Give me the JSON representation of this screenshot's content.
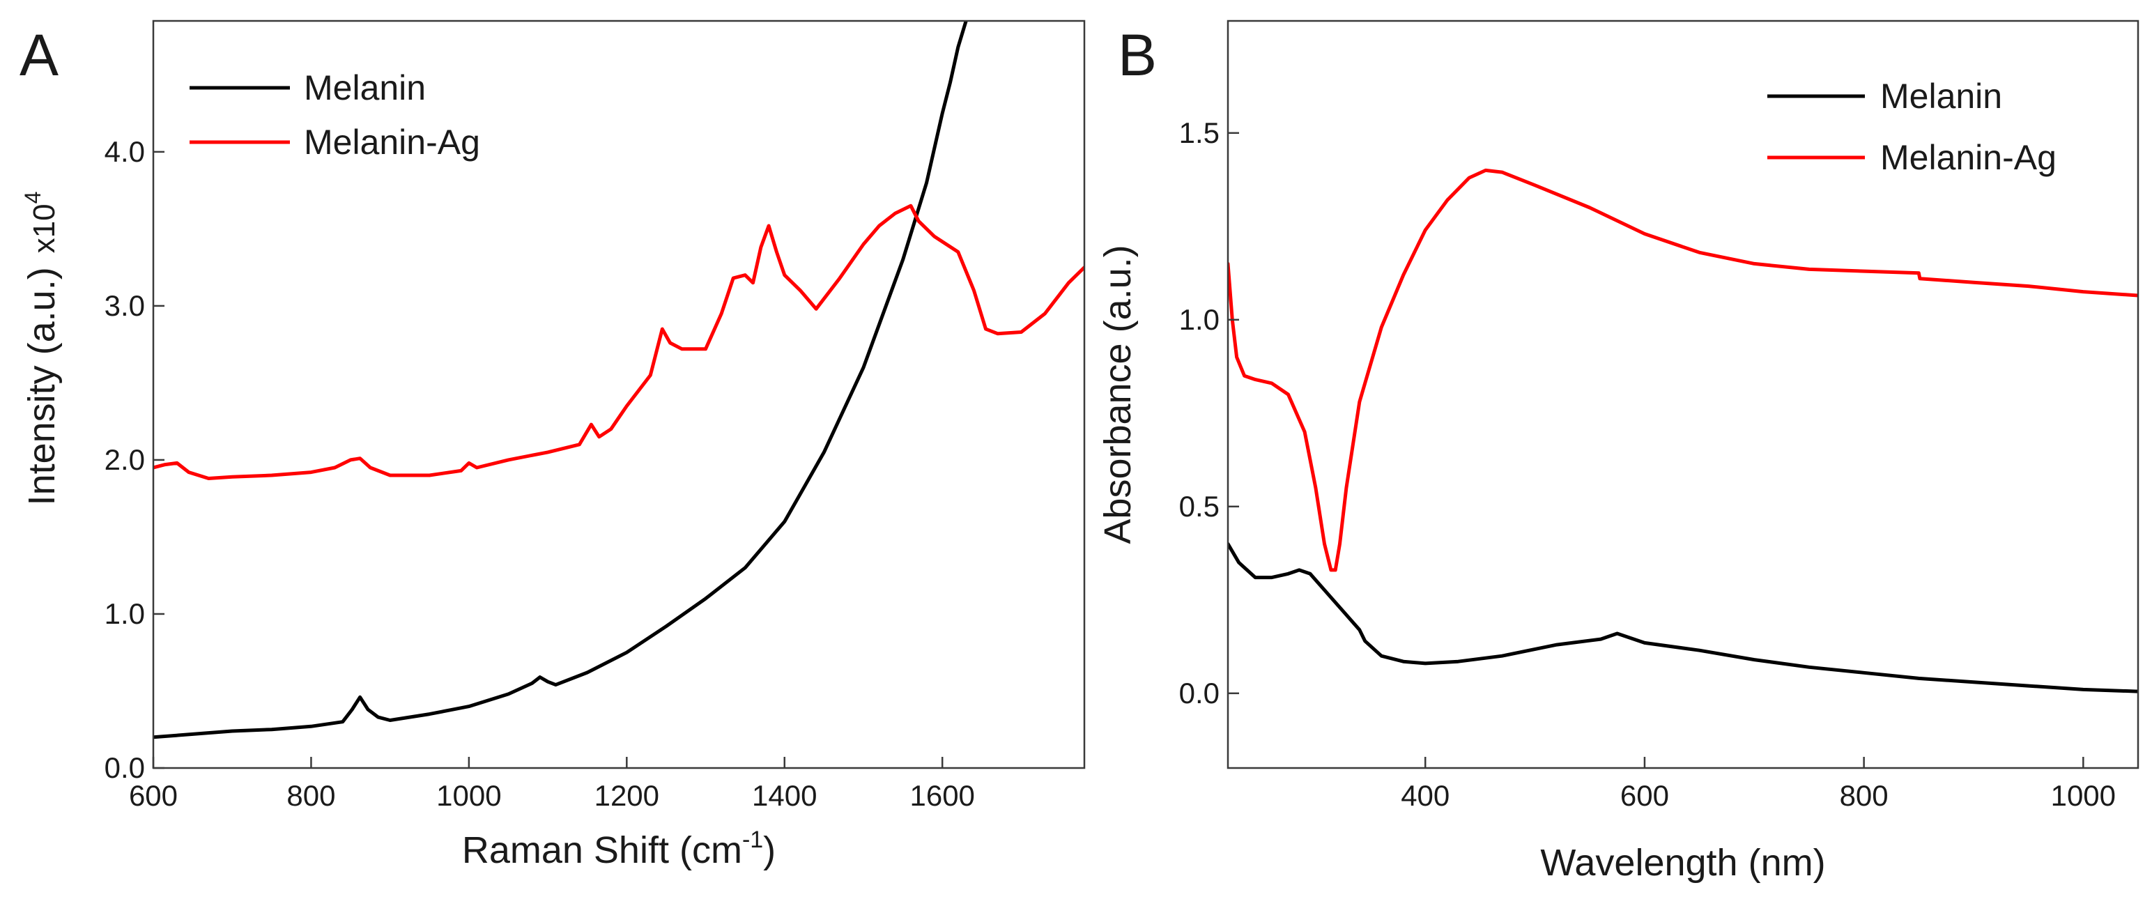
{
  "chart_data": [
    {
      "panel": "A",
      "type": "line",
      "xlabel": "Raman Shift (cm",
      "xlabel_sup": "-1",
      "xlabel_tail": ")",
      "ylabel": "Intensity (a.u.)",
      "y_multiplier": "x10",
      "y_multiplier_sup": "4",
      "xlim": [
        600,
        1780
      ],
      "ylim": [
        0.0,
        4.85
      ],
      "xticks": [
        600,
        800,
        1000,
        1200,
        1400,
        1600
      ],
      "xtick_labels": [
        "600",
        "800",
        "1000",
        "1200",
        "1400",
        "1600"
      ],
      "yticks": [
        0.0,
        1.0,
        2.0,
        3.0,
        4.0
      ],
      "ytick_labels": [
        "0.0",
        "1.0",
        "2.0",
        "3.0",
        "4.0"
      ],
      "legend_position": "top-left",
      "series": [
        {
          "name": "Melanin",
          "color": "#000000",
          "x": [
            600,
            650,
            700,
            750,
            800,
            840,
            852,
            862,
            872,
            885,
            900,
            950,
            1000,
            1050,
            1080,
            1090,
            1100,
            1110,
            1150,
            1200,
            1250,
            1300,
            1350,
            1400,
            1450,
            1500,
            1550,
            1580,
            1600,
            1610,
            1620,
            1630
          ],
          "values": [
            0.2,
            0.22,
            0.24,
            0.25,
            0.27,
            0.3,
            0.38,
            0.46,
            0.38,
            0.33,
            0.31,
            0.35,
            0.4,
            0.48,
            0.55,
            0.59,
            0.56,
            0.54,
            0.62,
            0.75,
            0.92,
            1.1,
            1.3,
            1.6,
            2.05,
            2.6,
            3.3,
            3.8,
            4.25,
            4.45,
            4.68,
            4.85
          ]
        },
        {
          "name": "Melanin-Ag",
          "color": "#ff0000",
          "x": [
            600,
            615,
            630,
            645,
            670,
            700,
            750,
            800,
            830,
            850,
            862,
            875,
            900,
            950,
            990,
            1000,
            1010,
            1050,
            1100,
            1140,
            1155,
            1165,
            1180,
            1200,
            1230,
            1245,
            1255,
            1270,
            1300,
            1320,
            1335,
            1350,
            1360,
            1370,
            1380,
            1390,
            1400,
            1420,
            1440,
            1470,
            1500,
            1520,
            1540,
            1560,
            1570,
            1590,
            1620,
            1640,
            1655,
            1670,
            1700,
            1730,
            1760,
            1780
          ],
          "values": [
            1.95,
            1.97,
            1.98,
            1.92,
            1.88,
            1.89,
            1.9,
            1.92,
            1.95,
            2.0,
            2.01,
            1.95,
            1.9,
            1.9,
            1.93,
            1.98,
            1.95,
            2.0,
            2.05,
            2.1,
            2.23,
            2.15,
            2.2,
            2.35,
            2.55,
            2.85,
            2.76,
            2.72,
            2.72,
            2.95,
            3.18,
            3.2,
            3.15,
            3.38,
            3.52,
            3.35,
            3.2,
            3.1,
            2.98,
            3.18,
            3.4,
            3.52,
            3.6,
            3.65,
            3.55,
            3.45,
            3.35,
            3.1,
            2.85,
            2.82,
            2.83,
            2.95,
            3.15,
            3.25
          ]
        }
      ]
    },
    {
      "panel": "B",
      "type": "line",
      "xlabel": "Wavelength (nm)",
      "ylabel": "Absorbance (a.u.)",
      "xlim": [
        220,
        1050
      ],
      "ylim": [
        -0.2,
        1.8
      ],
      "xticks": [
        400,
        600,
        800,
        1000
      ],
      "xtick_labels": [
        "400",
        "600",
        "800",
        "1000"
      ],
      "yticks": [
        0.0,
        0.5,
        1.0,
        1.5
      ],
      "ytick_labels": [
        "0.0",
        "0.5",
        "1.0",
        "1.5"
      ],
      "legend_position": "top-right",
      "series": [
        {
          "name": "Melanin",
          "color": "#000000",
          "x": [
            220,
            230,
            245,
            260,
            275,
            285,
            295,
            310,
            325,
            340,
            345,
            360,
            380,
            400,
            430,
            470,
            520,
            560,
            575,
            600,
            650,
            700,
            750,
            800,
            850,
            900,
            950,
            1000,
            1050
          ],
          "values": [
            0.4,
            0.35,
            0.31,
            0.31,
            0.32,
            0.33,
            0.32,
            0.27,
            0.22,
            0.17,
            0.14,
            0.1,
            0.085,
            0.08,
            0.085,
            0.1,
            0.13,
            0.145,
            0.16,
            0.135,
            0.115,
            0.09,
            0.07,
            0.055,
            0.04,
            0.03,
            0.02,
            0.01,
            0.005
          ]
        },
        {
          "name": "Melanin-Ag",
          "color": "#ff0000",
          "x": [
            220,
            224,
            228,
            235,
            245,
            260,
            275,
            290,
            300,
            308,
            314,
            318,
            322,
            328,
            340,
            360,
            380,
            400,
            420,
            440,
            455,
            470,
            500,
            550,
            600,
            650,
            700,
            750,
            800,
            850,
            851,
            900,
            950,
            1000,
            1050
          ],
          "values": [
            1.15,
            1.0,
            0.9,
            0.85,
            0.84,
            0.83,
            0.8,
            0.7,
            0.55,
            0.4,
            0.33,
            0.33,
            0.4,
            0.55,
            0.78,
            0.98,
            1.12,
            1.24,
            1.32,
            1.38,
            1.4,
            1.395,
            1.36,
            1.3,
            1.23,
            1.18,
            1.15,
            1.135,
            1.13,
            1.125,
            1.11,
            1.1,
            1.09,
            1.075,
            1.065
          ]
        }
      ]
    }
  ]
}
